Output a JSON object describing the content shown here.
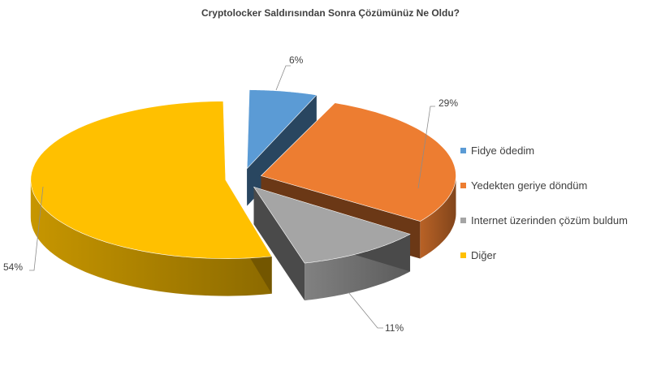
{
  "chart_data": {
    "type": "pie",
    "title": "Cryptolocker Saldırısından Sonra Çözümünüz Ne Oldu?",
    "slices": [
      {
        "label": "Fidye ödedim",
        "value": 6,
        "display": "6%",
        "color": "#5b9bd5",
        "exploded": true
      },
      {
        "label": "Yedekten geriye döndüm",
        "value": 29,
        "display": "29%",
        "color": "#ed7d31",
        "exploded": true
      },
      {
        "label": "Internet üzerinden çözüm buldum",
        "value": 11,
        "display": "11%",
        "color": "#a5a5a5",
        "exploded": true
      },
      {
        "label": "Diğer",
        "value": 54,
        "display": "54%",
        "color": "#ffc000",
        "exploded": true
      }
    ],
    "legend": {
      "position": "right"
    },
    "style": "3d-exploded"
  }
}
